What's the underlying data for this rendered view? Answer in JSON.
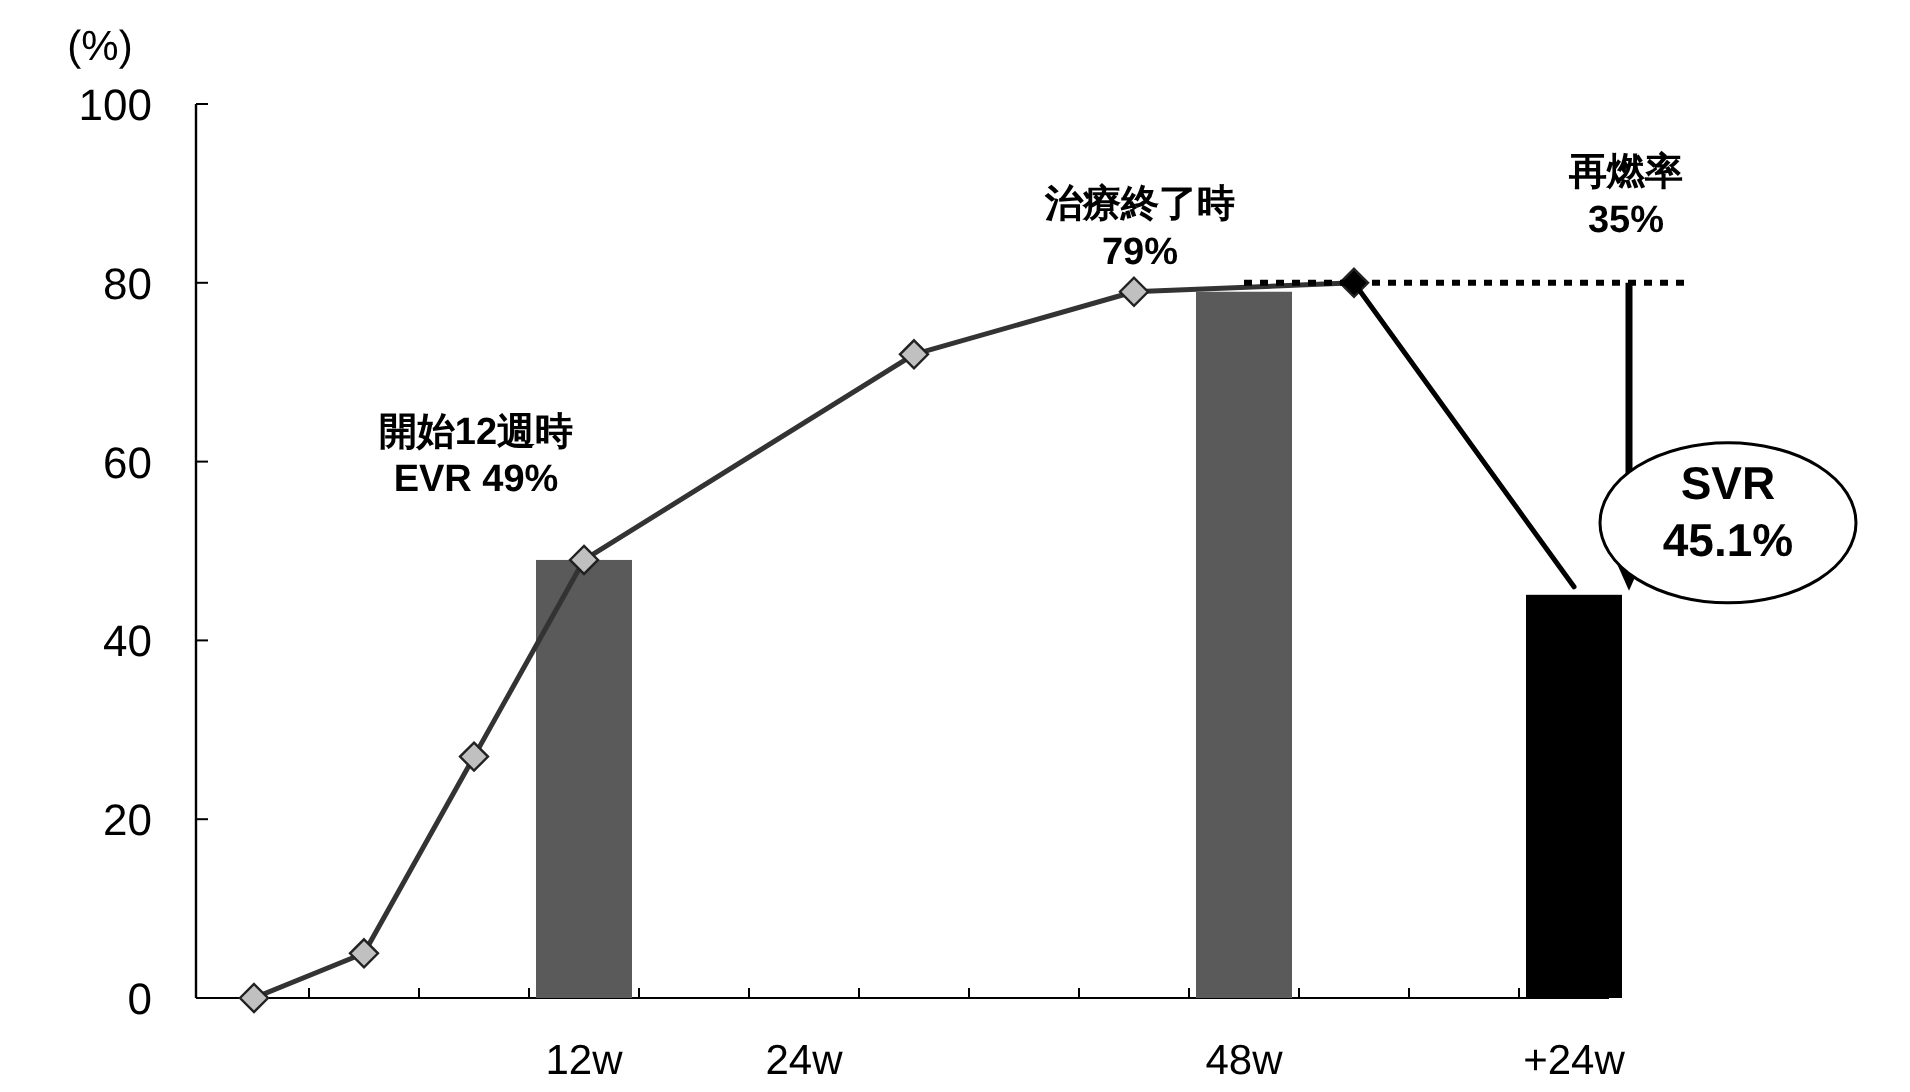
{
  "chart_data": {
    "type": "line",
    "ylabel": "(%)",
    "ylim": [
      0,
      100
    ],
    "yticks": [
      0,
      20,
      40,
      60,
      80,
      100
    ],
    "categories": [
      null,
      null,
      null,
      "12w",
      null,
      "24w",
      null,
      null,
      null,
      "48w",
      null,
      null,
      "+24w",
      null
    ],
    "series": [
      {
        "type": "bar",
        "color": "#5a5a5a",
        "values": [
          null,
          null,
          null,
          49,
          null,
          null,
          null,
          null,
          null,
          79,
          null,
          null,
          null,
          null
        ]
      },
      {
        "type": "bar",
        "color": "#000000",
        "values": [
          null,
          null,
          null,
          null,
          null,
          null,
          null,
          null,
          null,
          null,
          null,
          null,
          45.1,
          null
        ]
      },
      {
        "color": "#333333",
        "marker": "diamond",
        "colors": [
          "#c0c0c0",
          "#c0c0c0",
          "#c0c0c0",
          "#c0c0c0",
          null,
          null,
          "#c0c0c0",
          null,
          "#c0c0c0",
          null,
          "#000000",
          null,
          null,
          null
        ],
        "values": [
          0,
          5,
          27,
          49,
          null,
          null,
          72,
          null,
          79,
          null,
          80,
          null,
          null,
          null
        ]
      },
      {
        "color": "#000000",
        "values": [
          null,
          null,
          null,
          null,
          null,
          null,
          null,
          null,
          null,
          null,
          80,
          null,
          46,
          null
        ]
      },
      {
        "color": "#000000",
        "line_style": "dotted",
        "values": [
          null,
          null,
          null,
          null,
          null,
          null,
          null,
          null,
          null,
          80,
          80,
          80,
          80,
          80
        ]
      }
    ],
    "annotations": [
      {
        "text": "開始12週時\nEVR 49%",
        "x": "12w",
        "y": 49
      },
      "治療終了時\n79%",
      "再燃率\n35%",
      {
        "text": "SVR\n45.1%",
        "x": "+24w",
        "y": 45.1
      }
    ],
    "grid": false
  }
}
